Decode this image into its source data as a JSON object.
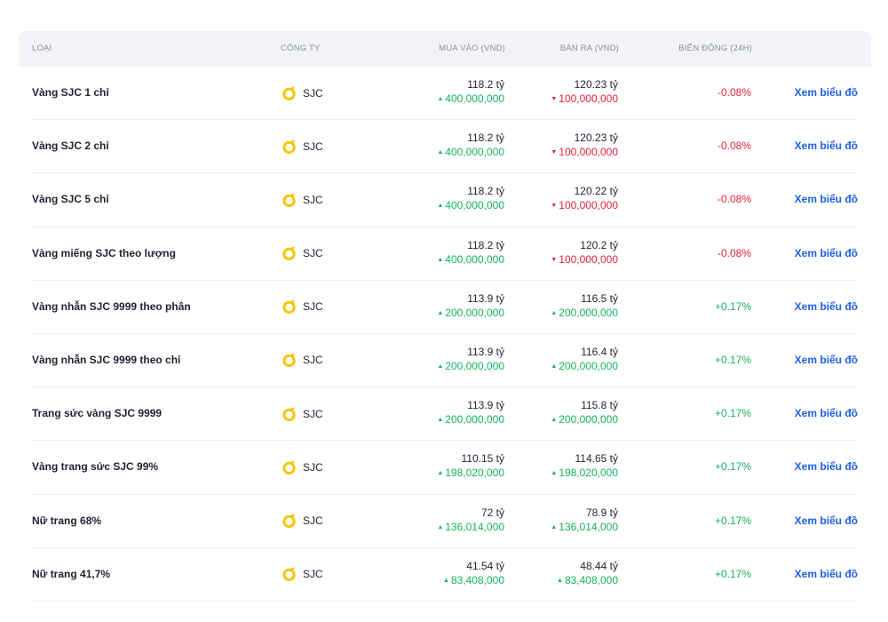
{
  "table": {
    "headers": {
      "type": "LOẠI",
      "company": "CÔNG TY",
      "buy": "MUA VÀO (VND)",
      "sell": "BÁN RA (VND)",
      "change": "BIẾN ĐỘNG (24H)"
    },
    "link_label": "Xem biểu đồ",
    "colors": {
      "up": "#16b35e",
      "down": "#e5243c",
      "link": "#1d5fe3",
      "logo": "#f5c400"
    },
    "rows": [
      {
        "type": "Vàng SJC 1 chỉ",
        "company": "SJC",
        "buy_price": "118.2 tỷ",
        "buy_delta": "400,000,000",
        "buy_dir": "up",
        "sell_price": "120.23 tỷ",
        "sell_delta": "100,000,000",
        "sell_dir": "down",
        "change": "-0.08%",
        "change_dir": "down"
      },
      {
        "type": "Vàng SJC 2 chỉ",
        "company": "SJC",
        "buy_price": "118.2 tỷ",
        "buy_delta": "400,000,000",
        "buy_dir": "up",
        "sell_price": "120.23 tỷ",
        "sell_delta": "100,000,000",
        "sell_dir": "down",
        "change": "-0.08%",
        "change_dir": "down"
      },
      {
        "type": "Vàng SJC 5 chỉ",
        "company": "SJC",
        "buy_price": "118.2 tỷ",
        "buy_delta": "400,000,000",
        "buy_dir": "up",
        "sell_price": "120.22 tỷ",
        "sell_delta": "100,000,000",
        "sell_dir": "down",
        "change": "-0.08%",
        "change_dir": "down"
      },
      {
        "type": "Vàng miếng SJC theo lượng",
        "company": "SJC",
        "buy_price": "118.2 tỷ",
        "buy_delta": "400,000,000",
        "buy_dir": "up",
        "sell_price": "120.2 tỷ",
        "sell_delta": "100,000,000",
        "sell_dir": "down",
        "change": "-0.08%",
        "change_dir": "down"
      },
      {
        "type": "Vàng nhẫn SJC 9999 theo phân",
        "company": "SJC",
        "buy_price": "113.9 tỷ",
        "buy_delta": "200,000,000",
        "buy_dir": "up",
        "sell_price": "116.5 tỷ",
        "sell_delta": "200,000,000",
        "sell_dir": "up",
        "change": "+0.17%",
        "change_dir": "up"
      },
      {
        "type": "Vàng nhẫn SJC 9999 theo chỉ",
        "company": "SJC",
        "buy_price": "113.9 tỷ",
        "buy_delta": "200,000,000",
        "buy_dir": "up",
        "sell_price": "116.4 tỷ",
        "sell_delta": "200,000,000",
        "sell_dir": "up",
        "change": "+0.17%",
        "change_dir": "up"
      },
      {
        "type": "Trang sức vàng SJC 9999",
        "company": "SJC",
        "buy_price": "113.9 tỷ",
        "buy_delta": "200,000,000",
        "buy_dir": "up",
        "sell_price": "115.8 tỷ",
        "sell_delta": "200,000,000",
        "sell_dir": "up",
        "change": "+0.17%",
        "change_dir": "up"
      },
      {
        "type": "Vàng trang sức SJC 99%",
        "company": "SJC",
        "buy_price": "110.15 tỷ",
        "buy_delta": "198,020,000",
        "buy_dir": "up",
        "sell_price": "114.65 tỷ",
        "sell_delta": "198,020,000",
        "sell_dir": "up",
        "change": "+0.17%",
        "change_dir": "up"
      },
      {
        "type": "Nữ trang 68%",
        "company": "SJC",
        "buy_price": "72 tỷ",
        "buy_delta": "136,014,000",
        "buy_dir": "up",
        "sell_price": "78.9 tỷ",
        "sell_delta": "136,014,000",
        "sell_dir": "up",
        "change": "+0.17%",
        "change_dir": "up"
      },
      {
        "type": "Nữ trang 41,7%",
        "company": "SJC",
        "buy_price": "41.54 tỷ",
        "buy_delta": "83,408,000",
        "buy_dir": "up",
        "sell_price": "48.44 tỷ",
        "sell_delta": "83,408,000",
        "sell_dir": "up",
        "change": "+0.17%",
        "change_dir": "up"
      }
    ]
  }
}
